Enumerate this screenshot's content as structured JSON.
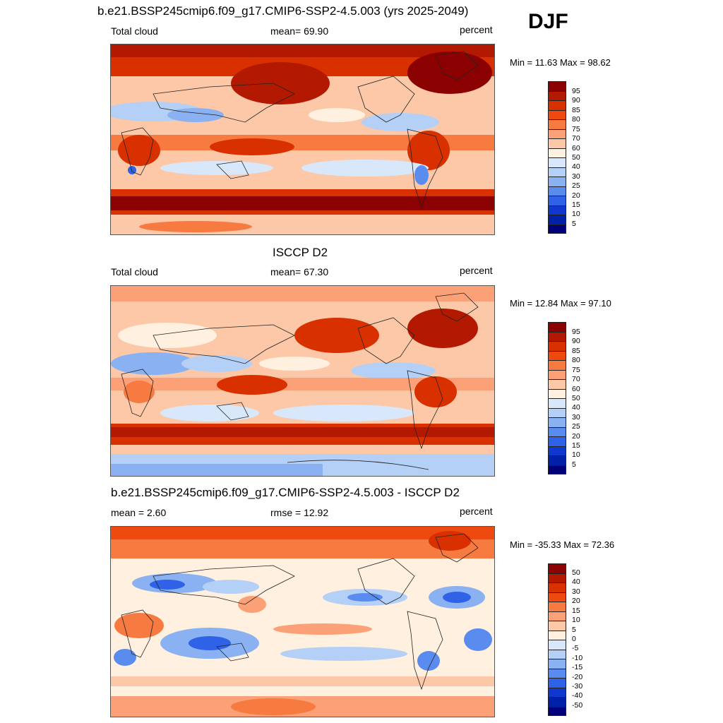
{
  "season": "DJF",
  "panels": [
    {
      "title": "b.e21.BSSP245cmip6.f09_g17.CMIP6-SSP2-4.5.003 (yrs 2025-2049)",
      "left_label": "Total cloud",
      "center_label": "mean=  69.90",
      "units": "percent",
      "minmax": "Min =  11.63 Max =  98.62"
    },
    {
      "title": "ISCCP D2",
      "left_label": "Total cloud",
      "center_label": "mean=  67.30",
      "units": "percent",
      "minmax": "Min =  12.84 Max =  97.10"
    },
    {
      "title": "b.e21.BSSP245cmip6.f09_g17.CMIP6-SSP2-4.5.003 - ISCCP D2",
      "left_label": "mean =   2.60",
      "center_label": "rmse =  12.92",
      "units": "percent",
      "minmax": "Min = -35.33 Max =  72.36"
    }
  ],
  "colorbar_abs": {
    "ticks": [
      "95",
      "90",
      "85",
      "80",
      "75",
      "70",
      "60",
      "50",
      "40",
      "30",
      "25",
      "20",
      "15",
      "10",
      "5"
    ],
    "colors": [
      "#8b0000",
      "#b31800",
      "#d93000",
      "#ee4a10",
      "#f77a40",
      "#fca078",
      "#fdc8a8",
      "#fff0e0",
      "#d8e8fa",
      "#b4d0f7",
      "#8ab2f2",
      "#5a8cef",
      "#2f62e6",
      "#1038cf",
      "#0020a8",
      "#00007a"
    ]
  },
  "colorbar_diff": {
    "ticks": [
      "50",
      "40",
      "30",
      "20",
      "15",
      "10",
      "5",
      "0",
      "-5",
      "-10",
      "-15",
      "-20",
      "-30",
      "-40",
      "-50"
    ],
    "colors": [
      "#8b0000",
      "#b31800",
      "#d93000",
      "#ee4a10",
      "#f77a40",
      "#fca078",
      "#fdc8a8",
      "#fff0e0",
      "#d8e8fa",
      "#b4d0f7",
      "#8ab2f2",
      "#5a8cef",
      "#2f62e6",
      "#1038cf",
      "#0020a8",
      "#00007a"
    ]
  }
}
